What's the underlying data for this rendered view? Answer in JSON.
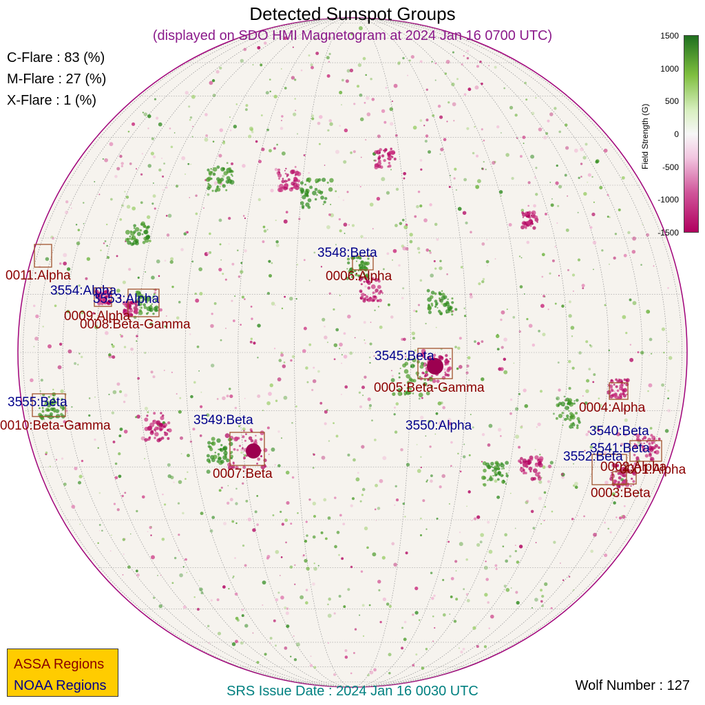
{
  "title": "Detected Sunspot Groups",
  "subtitle": "(displayed on SDO HMI Magnetogram at 2024 Jan 16 0700 UTC)",
  "flares": {
    "c": "C-Flare : 83 (%)",
    "m": "M-Flare : 27 (%)",
    "x": "X-Flare :  1 (%)"
  },
  "colorbar": {
    "title": "Field Strength (G)",
    "ticks": [
      "1500",
      "1000",
      "500",
      "0",
      "-500",
      "-1000",
      "-1500"
    ],
    "colors": [
      "#1f6f1f",
      "#7fbf3f",
      "#d8efc0",
      "#f7f7f7",
      "#f2c6e0",
      "#d0559a",
      "#b0005e"
    ]
  },
  "regions": {
    "noaa": [
      "3548:Beta",
      "3554:Alpha",
      "3553:Alpha",
      "3545:Beta",
      "3555:Beta",
      "3549:Beta",
      "3550:Alpha",
      "3540:Beta",
      "3541:Beta",
      "3552:Beta"
    ],
    "assa": [
      "0011:Alpha",
      "0006:Alpha",
      "0009:Alpha",
      "0008:Beta-Gamma",
      "0005:Beta-Gamma",
      "0010:Beta-Gamma",
      "0004:Alpha",
      "0007:Beta",
      "0002:Alpha",
      "0001:Alpha",
      "0003:Beta"
    ]
  },
  "legend": {
    "assa": "ASSA Regions",
    "noaa": "NOAA Regions"
  },
  "footer": {
    "issue": "SRS Issue Date : 2024 Jan 16 0030 UTC",
    "wolf": "Wolf Number : 127"
  }
}
